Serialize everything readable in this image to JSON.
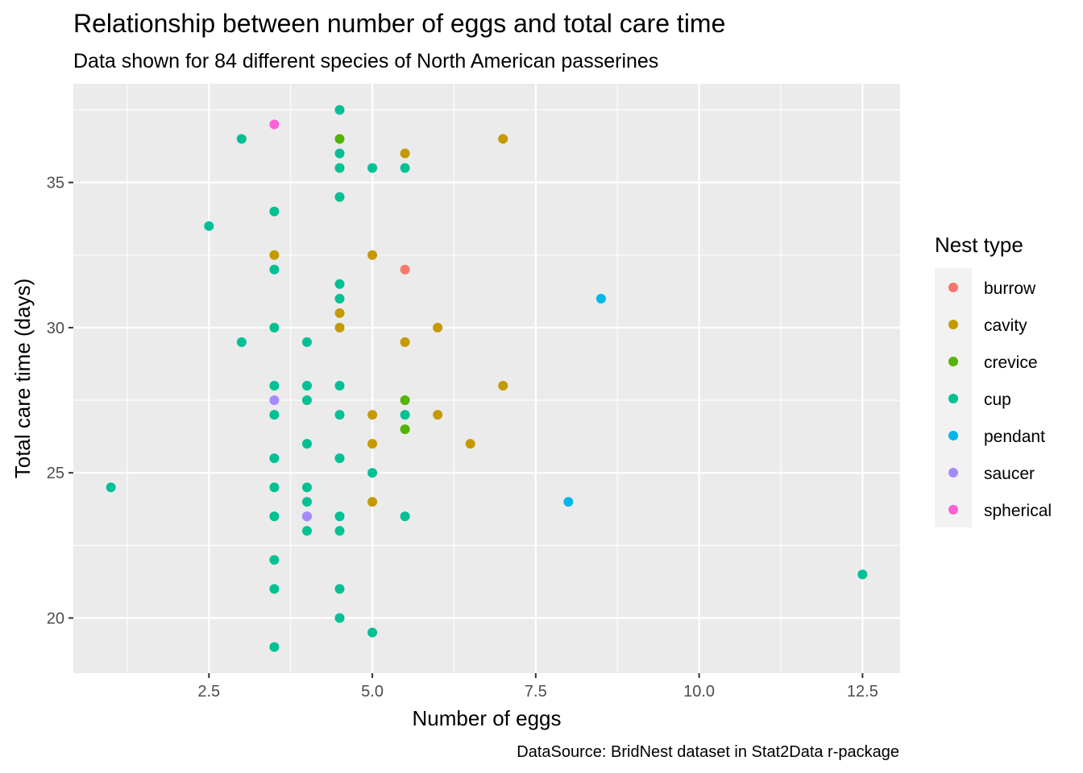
{
  "chart_data": {
    "type": "scatter",
    "title": "Relationship between number of eggs and total care time",
    "subtitle": "Data shown for 84 different species of North American passerines",
    "caption": "DataSource: BridNest dataset in Stat2Data r-package",
    "xlabel": "Number of eggs",
    "ylabel": "Total care time (days)",
    "xlim": [
      0.425,
      13.075
    ],
    "ylim": [
      18.1,
      38.4
    ],
    "x_ticks": [
      2.5,
      5.0,
      7.5,
      10.0,
      12.5
    ],
    "x_tick_labels": [
      "2.5",
      "5.0",
      "7.5",
      "10.0",
      "12.5"
    ],
    "y_ticks": [
      20,
      25,
      30,
      35
    ],
    "y_tick_labels": [
      "20",
      "25",
      "30",
      "35"
    ],
    "grid": true,
    "panel_background": "#ebebeb",
    "grid_color": "#ffffff",
    "legend": {
      "title": "Nest type",
      "position": "right",
      "entries": [
        {
          "label": "burrow",
          "color": "#F8766D"
        },
        {
          "label": "cavity",
          "color": "#C49A00"
        },
        {
          "label": "crevice",
          "color": "#53B400"
        },
        {
          "label": "cup",
          "color": "#00C094"
        },
        {
          "label": "pendant",
          "color": "#00B6EB"
        },
        {
          "label": "saucer",
          "color": "#A58AFF"
        },
        {
          "label": "spherical",
          "color": "#FB61D7"
        }
      ]
    },
    "series": [
      {
        "name": "burrow",
        "color": "#F8766D",
        "points": [
          [
            5.5,
            32
          ]
        ]
      },
      {
        "name": "cavity",
        "color": "#C49A00",
        "points": [
          [
            7,
            36.5
          ],
          [
            5.5,
            36
          ],
          [
            3.5,
            32.5
          ],
          [
            5,
            32.5
          ],
          [
            4.5,
            30.5
          ],
          [
            4.5,
            30
          ],
          [
            6,
            30
          ],
          [
            5.5,
            29.5
          ],
          [
            7,
            28
          ],
          [
            5,
            27
          ],
          [
            6,
            27
          ],
          [
            5,
            26
          ],
          [
            6.5,
            26
          ],
          [
            5,
            24
          ]
        ]
      },
      {
        "name": "crevice",
        "color": "#53B400",
        "points": [
          [
            4.5,
            36.5
          ],
          [
            5.5,
            27.5
          ],
          [
            5.5,
            26.5
          ]
        ]
      },
      {
        "name": "cup",
        "color": "#00C094",
        "points": [
          [
            4.5,
            37.5
          ],
          [
            3,
            36.5
          ],
          [
            4.5,
            36
          ],
          [
            4.5,
            35.5
          ],
          [
            5,
            35.5
          ],
          [
            5.5,
            35.5
          ],
          [
            4.5,
            34.5
          ],
          [
            3.5,
            34
          ],
          [
            2.5,
            33.5
          ],
          [
            3.5,
            32
          ],
          [
            4.5,
            31.5
          ],
          [
            4.5,
            31
          ],
          [
            3.5,
            30
          ],
          [
            3,
            29.5
          ],
          [
            4,
            29.5
          ],
          [
            3.5,
            28
          ],
          [
            4,
            28
          ],
          [
            4.5,
            28
          ],
          [
            4,
            27.5
          ],
          [
            3.5,
            27
          ],
          [
            4.5,
            27
          ],
          [
            5.5,
            27
          ],
          [
            4,
            26
          ],
          [
            3.5,
            25.5
          ],
          [
            4.5,
            25.5
          ],
          [
            5,
            25
          ],
          [
            1,
            24.5
          ],
          [
            3.5,
            24.5
          ],
          [
            4,
            24.5
          ],
          [
            4,
            24
          ],
          [
            3.5,
            23.5
          ],
          [
            4,
            23.5
          ],
          [
            4.5,
            23.5
          ],
          [
            5.5,
            23.5
          ],
          [
            4,
            23
          ],
          [
            4.5,
            23
          ],
          [
            3.5,
            22
          ],
          [
            3.5,
            21
          ],
          [
            4.5,
            21
          ],
          [
            4.5,
            20
          ],
          [
            5,
            19.5
          ],
          [
            3.5,
            19
          ],
          [
            12.5,
            21.5
          ]
        ]
      },
      {
        "name": "pendant",
        "color": "#00B6EB",
        "points": [
          [
            8.5,
            31
          ],
          [
            8,
            24
          ]
        ]
      },
      {
        "name": "saucer",
        "color": "#A58AFF",
        "points": [
          [
            3.5,
            27.5
          ],
          [
            4,
            23.5
          ]
        ]
      },
      {
        "name": "spherical",
        "color": "#FB61D7",
        "points": [
          [
            3.5,
            37
          ]
        ]
      }
    ]
  }
}
